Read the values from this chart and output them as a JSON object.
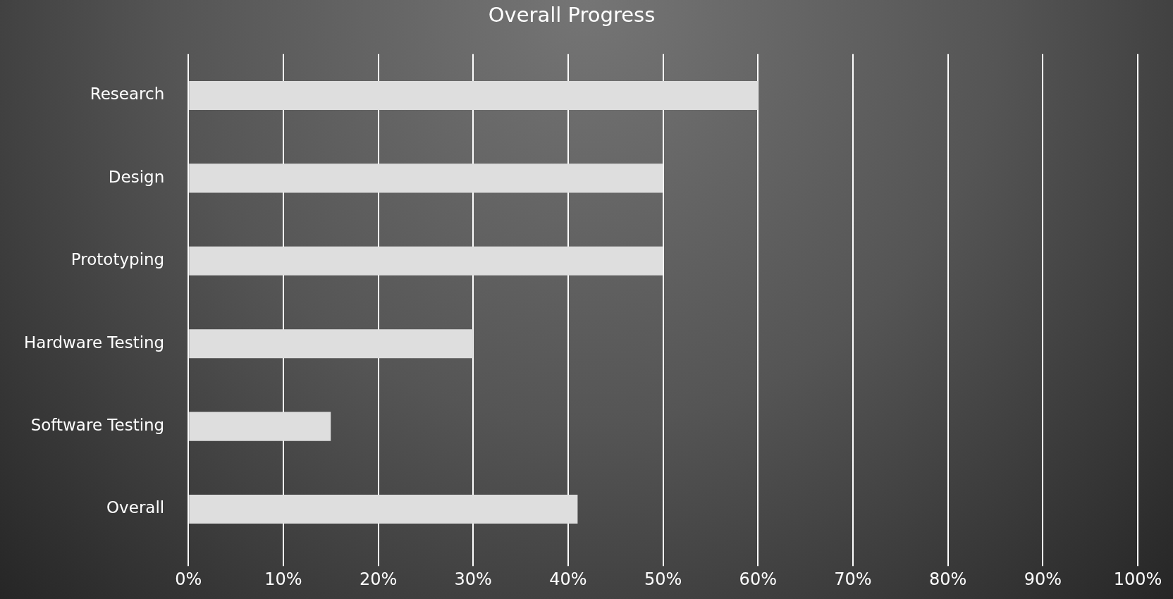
{
  "chart_data": {
    "type": "bar",
    "orientation": "horizontal",
    "title": "Overall Progress",
    "categories": [
      "Research",
      "Design",
      "Prototyping",
      "Hardware Testing",
      "Software Testing",
      "Overall"
    ],
    "values": [
      60,
      50,
      50,
      30,
      15,
      41
    ],
    "color": "#dedede",
    "xlim": [
      0,
      100
    ],
    "xticks": [
      {
        "value": 0,
        "label": "0%"
      },
      {
        "value": 10,
        "label": "10%"
      },
      {
        "value": 20,
        "label": "20%"
      },
      {
        "value": 30,
        "label": "30%"
      },
      {
        "value": 40,
        "label": "40%"
      },
      {
        "value": 50,
        "label": "50%"
      },
      {
        "value": 60,
        "label": "60%"
      },
      {
        "value": 70,
        "label": "70%"
      },
      {
        "value": 80,
        "label": "80%"
      },
      {
        "value": 90,
        "label": "90%"
      },
      {
        "value": 100,
        "label": "100%"
      }
    ],
    "grid": "x",
    "legend": false
  }
}
